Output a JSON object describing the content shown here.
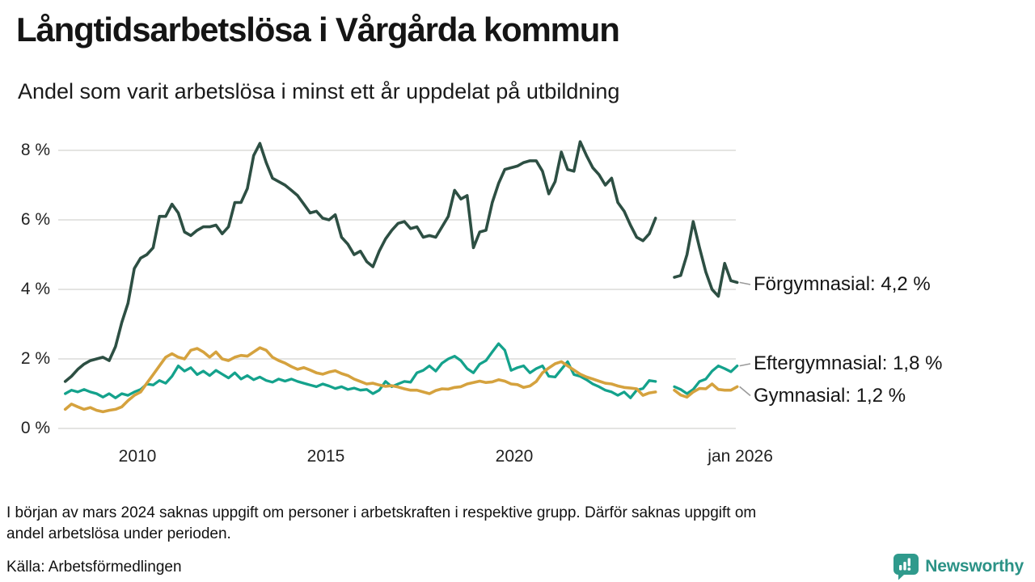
{
  "header": {
    "title": "Långtidsarbetslösa i Vårgårda kommun",
    "subtitle": "Andel som varit arbetslösa i minst ett år uppdelat på utbildning"
  },
  "chart_data": {
    "type": "line",
    "title": "Långtidsarbetslösa i Vårgårda kommun",
    "subtitle": "Andel som varit arbetslösa i minst ett år uppdelat på utbildning",
    "unit": "%",
    "x_start_year": 2008.0833,
    "x_step_years": 0.1666667,
    "x_ticks": [
      {
        "year": 2010,
        "label": "2010"
      },
      {
        "year": 2015,
        "label": "2015"
      },
      {
        "year": 2020,
        "label": "2020"
      },
      {
        "year": 2026.0,
        "label": "jan 2026"
      }
    ],
    "y_ticks": [
      {
        "value": 0,
        "label": "0 %"
      },
      {
        "value": 2,
        "label": "2 %"
      },
      {
        "value": 4,
        "label": "4 %"
      },
      {
        "value": 6,
        "label": "6 %"
      },
      {
        "value": 8,
        "label": "8 %"
      }
    ],
    "ylim": [
      0,
      8.6
    ],
    "grid": "horizontal",
    "gap_note": "missing data around March 2024 rendered as null",
    "series": [
      {
        "name": "Förgymnasial",
        "end_label": "Förgymnasial: 4,2 %",
        "end_value_label": "4,2 %",
        "color": "#2d4f43",
        "stroke_width": 3.6,
        "values": [
          1.35,
          1.5,
          1.7,
          1.85,
          1.95,
          2.0,
          2.05,
          1.95,
          2.35,
          3.05,
          3.6,
          4.6,
          4.9,
          5.0,
          5.2,
          6.1,
          6.1,
          6.45,
          6.2,
          5.65,
          5.55,
          5.7,
          5.8,
          5.8,
          5.85,
          5.6,
          5.8,
          6.5,
          6.5,
          6.9,
          7.85,
          8.2,
          7.65,
          7.2,
          7.1,
          7.0,
          6.85,
          6.7,
          6.45,
          6.2,
          6.25,
          6.05,
          6.0,
          6.15,
          5.5,
          5.3,
          5.0,
          5.1,
          4.8,
          4.65,
          5.1,
          5.45,
          5.7,
          5.9,
          5.95,
          5.75,
          5.8,
          5.5,
          5.55,
          5.5,
          5.8,
          6.1,
          6.85,
          6.6,
          6.7,
          5.2,
          5.65,
          5.7,
          6.5,
          7.05,
          7.45,
          7.5,
          7.55,
          7.65,
          7.7,
          7.7,
          7.4,
          6.75,
          7.1,
          7.95,
          7.45,
          7.4,
          8.25,
          7.85,
          7.5,
          7.3,
          7.0,
          7.2,
          6.5,
          6.25,
          5.85,
          5.5,
          5.4,
          5.6,
          6.05,
          null,
          null,
          4.35,
          4.4,
          5.0,
          5.95,
          5.2,
          4.5,
          4.0,
          3.8,
          4.75,
          4.25,
          4.2
        ]
      },
      {
        "name": "Eftergymnasial",
        "end_label": "Eftergymnasial: 1,8 %",
        "end_value_label": "1,8 %",
        "color": "#14a28c",
        "stroke_width": 3.3,
        "values": [
          1.0,
          1.1,
          1.05,
          1.12,
          1.05,
          1.0,
          0.9,
          1.0,
          0.88,
          1.0,
          0.95,
          1.05,
          1.12,
          1.28,
          1.25,
          1.38,
          1.3,
          1.5,
          1.8,
          1.65,
          1.75,
          1.55,
          1.65,
          1.52,
          1.67,
          1.56,
          1.45,
          1.6,
          1.42,
          1.52,
          1.4,
          1.48,
          1.38,
          1.33,
          1.42,
          1.36,
          1.42,
          1.35,
          1.3,
          1.25,
          1.2,
          1.28,
          1.22,
          1.15,
          1.2,
          1.12,
          1.16,
          1.1,
          1.12,
          1.0,
          1.1,
          1.35,
          1.2,
          1.28,
          1.35,
          1.33,
          1.6,
          1.67,
          1.8,
          1.65,
          1.88,
          2.0,
          2.08,
          1.95,
          1.72,
          1.6,
          1.85,
          1.95,
          2.2,
          2.44,
          2.25,
          1.67,
          1.75,
          1.8,
          1.6,
          1.72,
          1.8,
          1.5,
          1.48,
          1.7,
          1.92,
          1.55,
          1.5,
          1.4,
          1.28,
          1.2,
          1.1,
          1.05,
          0.95,
          1.05,
          0.88,
          1.1,
          1.15,
          1.38,
          1.35,
          null,
          null,
          1.2,
          1.12,
          1.0,
          1.12,
          1.35,
          1.42,
          1.65,
          1.8,
          1.72,
          1.63,
          1.8
        ]
      },
      {
        "name": "Gymnasial",
        "end_label": "Gymnasial: 1,2 %",
        "end_value_label": "1,2 %",
        "color": "#d5a23e",
        "stroke_width": 3.6,
        "values": [
          0.55,
          0.7,
          0.62,
          0.55,
          0.6,
          0.52,
          0.48,
          0.52,
          0.55,
          0.62,
          0.8,
          0.95,
          1.05,
          1.3,
          1.55,
          1.8,
          2.05,
          2.15,
          2.05,
          2.0,
          2.25,
          2.3,
          2.2,
          2.05,
          2.2,
          2.0,
          1.95,
          2.05,
          2.1,
          2.08,
          2.2,
          2.32,
          2.25,
          2.05,
          1.95,
          1.88,
          1.78,
          1.7,
          1.75,
          1.68,
          1.6,
          1.56,
          1.62,
          1.66,
          1.58,
          1.52,
          1.42,
          1.35,
          1.28,
          1.3,
          1.25,
          1.21,
          1.23,
          1.19,
          1.14,
          1.1,
          1.1,
          1.05,
          1.0,
          1.09,
          1.14,
          1.13,
          1.18,
          1.2,
          1.28,
          1.32,
          1.36,
          1.32,
          1.34,
          1.4,
          1.36,
          1.28,
          1.26,
          1.18,
          1.22,
          1.35,
          1.6,
          1.74,
          1.86,
          1.92,
          1.8,
          1.68,
          1.56,
          1.48,
          1.42,
          1.36,
          1.3,
          1.28,
          1.22,
          1.18,
          1.16,
          1.14,
          0.95,
          1.02,
          1.05,
          null,
          null,
          1.1,
          0.96,
          0.9,
          1.05,
          1.15,
          1.14,
          1.28,
          1.12,
          1.1,
          1.1,
          1.2
        ]
      }
    ],
    "colors": {
      "grid": "#e4e4e2",
      "connector": "#9a9a9a",
      "text": "#151515",
      "tick_text": "#222222"
    }
  },
  "footer": {
    "note_lines": [
      "I början av mars 2024 saknas uppgift om personer i arbetskraften i respektive grupp. Därför saknas uppgift om",
      "andel arbetslösa under perioden."
    ],
    "source": "Källa: Arbetsförmedlingen",
    "brand": "Newsworthy",
    "brand_color": "#2b9286"
  }
}
